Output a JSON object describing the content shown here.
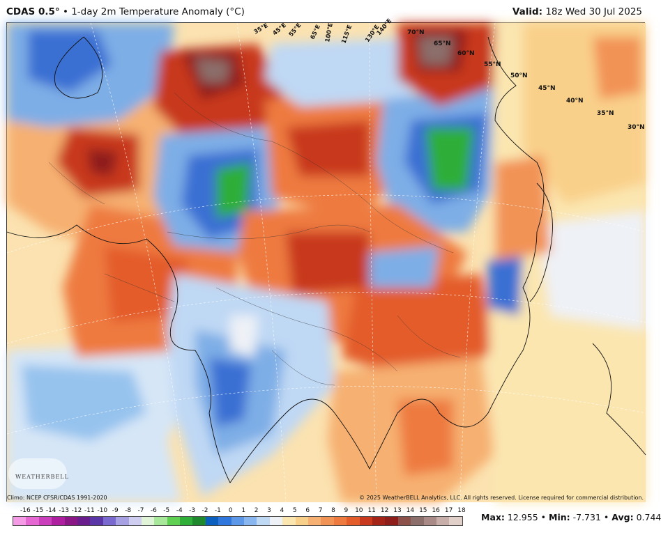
{
  "header": {
    "model": "CDAS 0.5°",
    "product": "• 1-day 2m Temperature Anomaly (°C)",
    "valid_label": "Valid:",
    "valid_time": "18z Wed 30 Jul 2025"
  },
  "map": {
    "longitude_labels": [
      "35°E",
      "45°E",
      "55°E",
      "65°E",
      "100°E",
      "115°E",
      "130°E",
      "140°E"
    ],
    "latitude_labels": [
      "70°N",
      "65°N",
      "60°N",
      "55°N",
      "50°N",
      "45°N",
      "40°N",
      "35°N",
      "30°N"
    ],
    "colors": {
      "land_warm": "#fbe2b0",
      "warm_light": "#f6b071",
      "warm_mid": "#ee7a3f",
      "warm_strong": "#c8391d",
      "hot": "#8e1e1a",
      "extreme": "#8c6e6a",
      "neutral": "#f2f2f2",
      "cool_light": "#bfd8f4",
      "cool_mid": "#7eaee6",
      "cool_strong": "#3a70d3",
      "cold": "#2fae38",
      "ocean_cool": "#96c3ee"
    }
  },
  "footer": {
    "climo": "Climo: NCEP CFSR/CDAS 1991-2020",
    "copyright": "© 2025 WeatherBELL Analytics, LLC. All rights reserved. License required for commercial distribution.",
    "logo_text": "WEATHERBELL"
  },
  "colorbar": {
    "labels": [
      "-16",
      "-15",
      "-14",
      "-13",
      "-12",
      "-11",
      "-10",
      "-9",
      "-8",
      "-7",
      "-6",
      "-5",
      "-4",
      "-3",
      "-2",
      "-1",
      "0",
      "1",
      "2",
      "3",
      "4",
      "5",
      "6",
      "7",
      "8",
      "9",
      "10",
      "11",
      "12",
      "13",
      "14",
      "15",
      "16",
      "17",
      "18"
    ],
    "colors": [
      "#f59ae4",
      "#e567d2",
      "#cc3fbc",
      "#ad1f9e",
      "#8b1685",
      "#6a1e8e",
      "#5a36a6",
      "#7a6ad0",
      "#a7a0e3",
      "#cfcdf0",
      "#e0f5d8",
      "#a7e89a",
      "#5fd052",
      "#2fae38",
      "#1f8a2d",
      "#0b5fbf",
      "#2f77dd",
      "#5c97e8",
      "#8ab6ef",
      "#bfd8f4",
      "#eef1f6",
      "#fbe6b0",
      "#f9d08a",
      "#f6b071",
      "#f29356",
      "#ee7a3f",
      "#e35c2a",
      "#c8391d",
      "#a42418",
      "#8e1e1a",
      "#8c5149",
      "#8c6e6a",
      "#a98a86",
      "#c7aea9",
      "#e1cfc9"
    ]
  },
  "stats": {
    "max_label": "Max:",
    "max_value": "12.955",
    "min_label": "Min:",
    "min_value": "-7.731",
    "avg_label": "Avg:",
    "avg_value": "0.744"
  }
}
